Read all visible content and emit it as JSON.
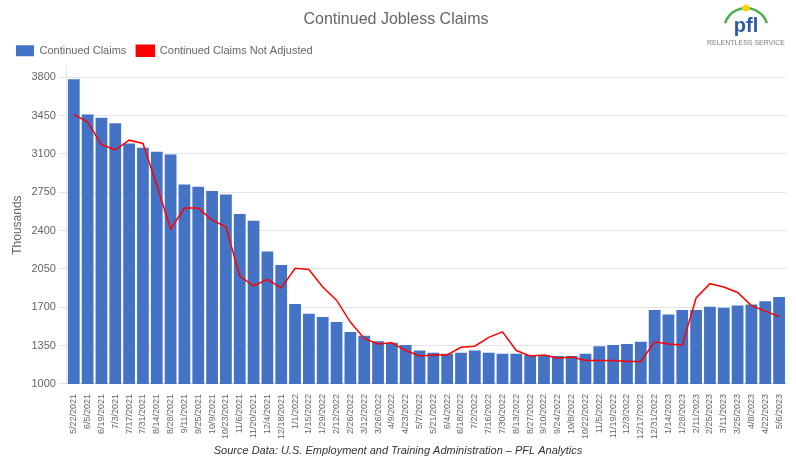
{
  "chart_data": {
    "type": "bar",
    "title": "Continued Jobless Claims",
    "ylabel": "Thousands",
    "annotations": [
      "Source Data: U.S. Employment and Training Administration – PFL Analytics",
      "pfl",
      "RELENTLESS SERVICE"
    ],
    "categories": [
      "5/22/2021",
      "6/5/2021",
      "6/19/2021",
      "7/3/2021",
      "7/17/2021",
      "7/31/2021",
      "8/14/2021",
      "8/28/2021",
      "9/11/2021",
      "9/25/2021",
      "10/9/2021",
      "10/23/2021",
      "11/6/2021",
      "11/20/2021",
      "12/4/2021",
      "12/18/2021",
      "1/1/2022",
      "1/15/2022",
      "1/29/2022",
      "2/12/2022",
      "2/26/2022",
      "3/12/2022",
      "3/26/2022",
      "4/9/2022",
      "4/23/2022",
      "5/7/2022",
      "5/21/2022",
      "6/4/2022",
      "6/18/2022",
      "7/2/2022",
      "7/16/2022",
      "7/30/2022",
      "8/13/2022",
      "8/27/2022",
      "9/10/2022",
      "9/24/2022",
      "10/8/2022",
      "10/22/2022",
      "11/5/2022",
      "11/19/2022",
      "12/3/2022",
      "12/17/2022",
      "12/31/2022",
      "1/14/2023",
      "1/28/2023",
      "2/11/2023",
      "2/25/2023",
      "3/11/2023",
      "3/25/2023",
      "4/8/2023",
      "4/22/2023",
      "5/6/2023"
    ],
    "series": [
      {
        "name": "Continued Claims",
        "type": "bar",
        "color": "#4472C4",
        "values": [
          3780,
          3460,
          3430,
          3380,
          3195,
          3155,
          3120,
          3095,
          2820,
          2800,
          2760,
          2730,
          2550,
          2490,
          2210,
          2085,
          1730,
          1640,
          1610,
          1565,
          1475,
          1440,
          1390,
          1375,
          1355,
          1305,
          1285,
          1275,
          1285,
          1305,
          1285,
          1275,
          1275,
          1265,
          1265,
          1255,
          1255,
          1275,
          1345,
          1355,
          1365,
          1385,
          1675,
          1635,
          1675,
          1675,
          1705,
          1695,
          1715,
          1725,
          1755,
          1794
        ]
      },
      {
        "name": "Continued Claims Not Adjusted",
        "type": "line",
        "color": "#FF0000",
        "values": [
          3460,
          3390,
          3185,
          3135,
          3225,
          3195,
          2815,
          2415,
          2605,
          2605,
          2495,
          2435,
          1985,
          1895,
          1955,
          1875,
          2055,
          2045,
          1885,
          1765,
          1565,
          1415,
          1365,
          1375,
          1305,
          1255,
          1265,
          1265,
          1335,
          1345,
          1425,
          1475,
          1305,
          1255,
          1265,
          1235,
          1245,
          1215,
          1215,
          1215,
          1205,
          1205,
          1385,
          1365,
          1355,
          1785,
          1915,
          1885,
          1835,
          1715,
          1665,
          1615
        ]
      }
    ],
    "ylim": [
      1000,
      3900
    ],
    "yticks": [
      1000,
      1350,
      1700,
      2050,
      2400,
      2750,
      3100,
      3450,
      3800
    ],
    "grid": true,
    "legend": "upper left"
  }
}
